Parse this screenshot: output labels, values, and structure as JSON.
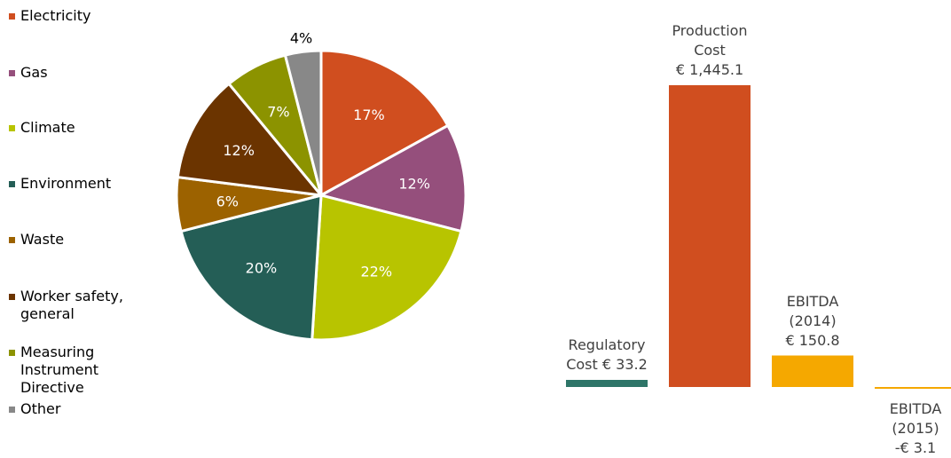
{
  "chart_data": [
    {
      "type": "pie",
      "slices": [
        {
          "label": "Electricity",
          "value": 17,
          "display": "17%",
          "color": "#D04E1F"
        },
        {
          "label": "Gas",
          "value": 12,
          "display": "12%",
          "color": "#954F7C"
        },
        {
          "label": "Climate",
          "value": 22,
          "display": "22%",
          "color": "#B8C400"
        },
        {
          "label": "Environment",
          "value": 20,
          "display": "20%",
          "color": "#245E56"
        },
        {
          "label": "Waste",
          "value": 6,
          "display": "6%",
          "color": "#9C6200"
        },
        {
          "label": "Worker safety, general",
          "value": 12,
          "display": "12%",
          "color": "#6B3400"
        },
        {
          "label": "Measuring Instrument Directive",
          "value": 7,
          "display": "7%",
          "color": "#8C9300"
        },
        {
          "label": "Other",
          "value": 4,
          "display": "4%",
          "color": "#888888"
        }
      ],
      "legend_position": "left"
    },
    {
      "type": "bar",
      "categories": [
        "Regulatory Cost",
        "Production Cost",
        "EBITDA (2014)",
        "EBITDA (2015)"
      ],
      "values": [
        33.2,
        1445.1,
        150.8,
        -3.1
      ],
      "labels": [
        "Regulatory\nCost € 33.2",
        "Production\nCost\n€ 1,445.1",
        "EBITDA\n(2014)\n€ 150.8",
        "EBITDA\n(2015)\n-€ 3.1"
      ],
      "colors": [
        "#2E7568",
        "#D04E1F",
        "#F5A800",
        "#F5A800"
      ]
    }
  ]
}
